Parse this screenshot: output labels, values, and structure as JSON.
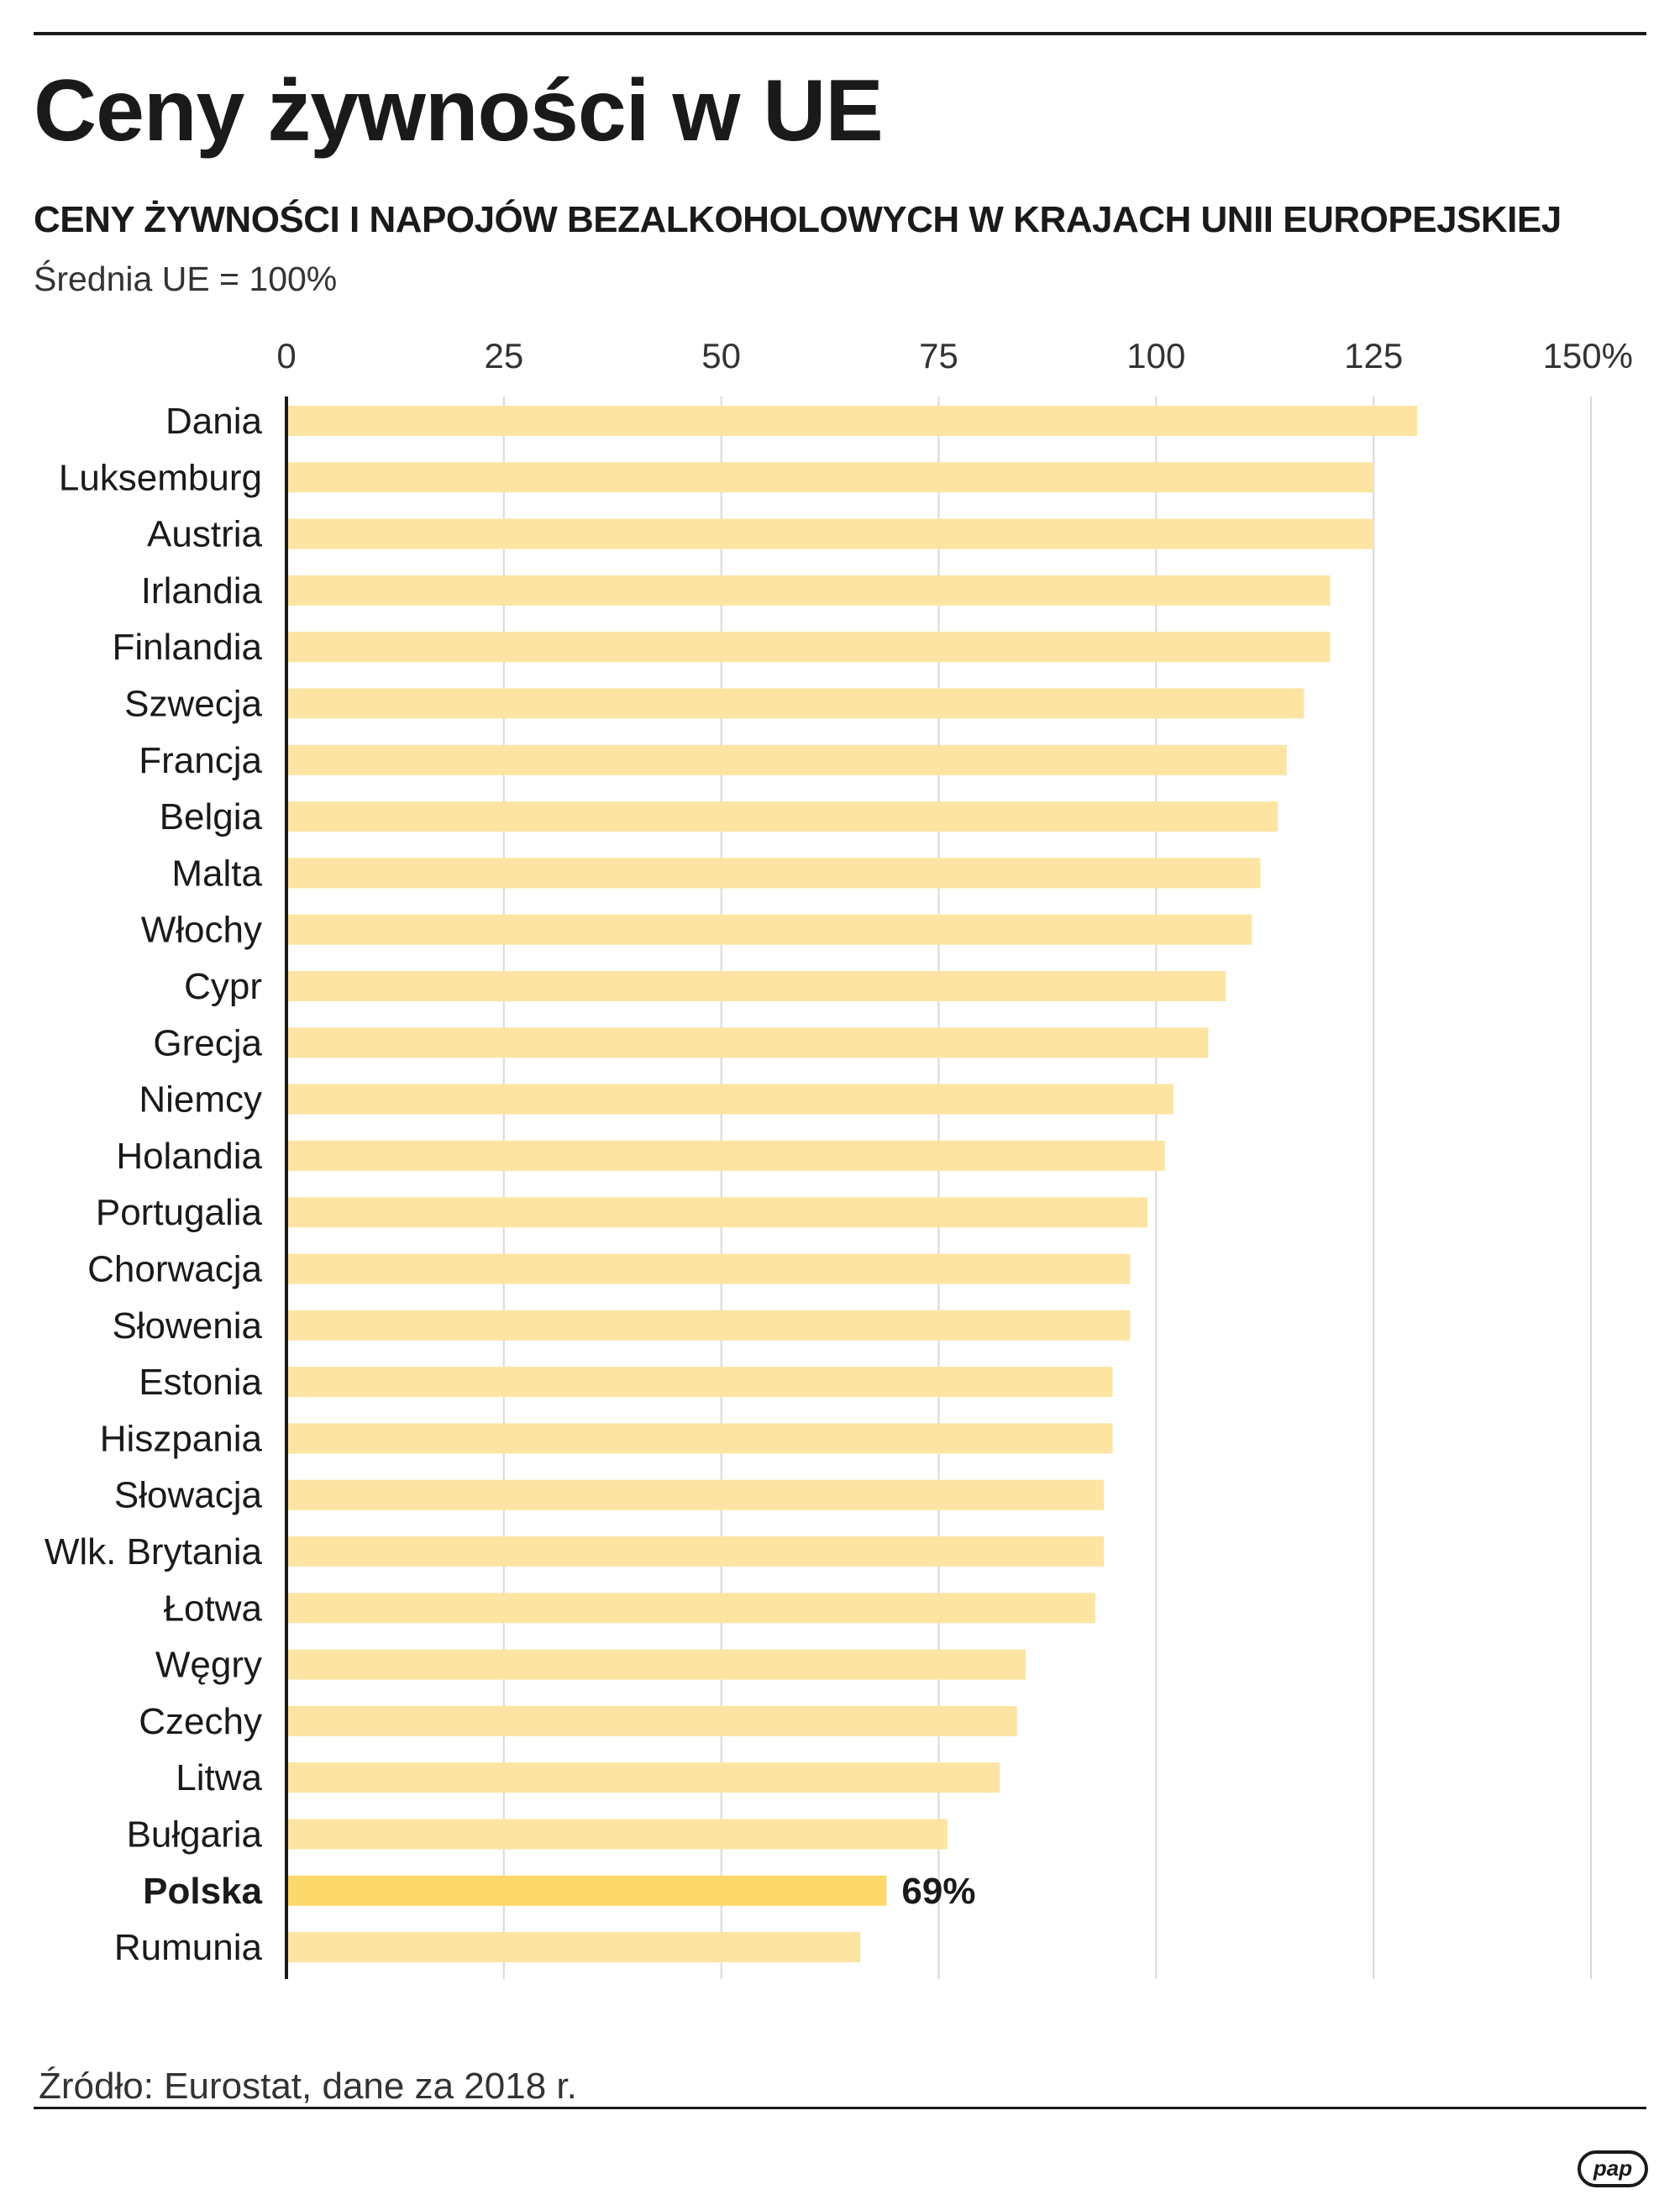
{
  "header": {
    "title": "Ceny żywności w UE",
    "subtitle": "CENY ŻYWNOŚCI I NAPOJÓW BEZALKOHOLOWYCH W KRAJACH UNII EUROPEJSKIEJ",
    "note": "Średnia UE = 100%"
  },
  "footer": {
    "source": "Źródło: Eurostat, dane za 2018 r.",
    "logo_text": "pap"
  },
  "colors": {
    "bar": "#fde4a3",
    "highlight": "#fcd76a",
    "grid": "#d9d9d9",
    "axis": "#1a1a1a",
    "text": "#1a1a1a"
  },
  "chart_data": {
    "type": "bar",
    "orientation": "horizontal",
    "title": "CENY ŻYWNOŚCI I NAPOJÓW BEZALKOHOLOWYCH W KRAJACH UNII EUROPEJSKIEJ",
    "xlabel": "",
    "ylabel": "",
    "xlim": [
      0,
      150
    ],
    "xticks": [
      0,
      25,
      50,
      75,
      100,
      125,
      150
    ],
    "tick_labels": [
      "0",
      "25",
      "50",
      "75",
      "100",
      "125",
      "150%"
    ],
    "grid": true,
    "categories": [
      "Dania",
      "Luksemburg",
      "Austria",
      "Irlandia",
      "Finlandia",
      "Szwecja",
      "Francja",
      "Belgia",
      "Malta",
      "Włochy",
      "Cypr",
      "Grecja",
      "Niemcy",
      "Holandia",
      "Portugalia",
      "Chorwacja",
      "Słowenia",
      "Estonia",
      "Hiszpania",
      "Słowacja",
      "Wlk. Brytania",
      "Łotwa",
      "Węgry",
      "Czechy",
      "Litwa",
      "Bułgaria",
      "Polska",
      "Rumunia"
    ],
    "values": [
      130,
      125,
      125,
      120,
      120,
      117,
      115,
      114,
      112,
      111,
      108,
      106,
      102,
      101,
      99,
      97,
      97,
      95,
      95,
      94,
      94,
      93,
      85,
      84,
      82,
      76,
      69,
      66
    ],
    "highlight": "Polska",
    "data_labels": {
      "Polska": "69%"
    }
  }
}
